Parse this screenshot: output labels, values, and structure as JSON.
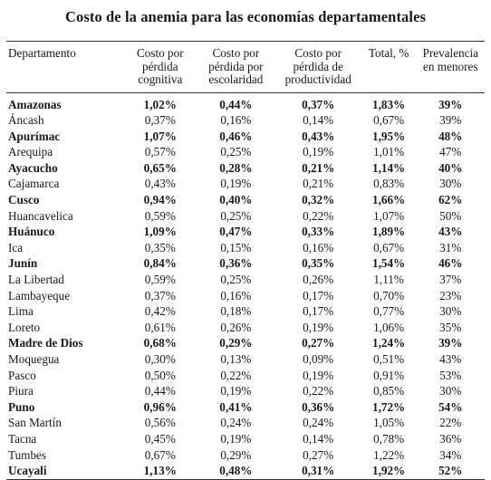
{
  "title": "Costo de la anemia para las economías departamentales",
  "headers": {
    "departamento": "Departamento",
    "costo_cognitiva": "Costo por pérdida cognitiva",
    "costo_escolaridad": "Costo por pérdida por escolaridad",
    "costo_productividad": "Costo por pérdida de productividad",
    "total": "Total, %",
    "prevalencia": "Prevalencia en menores"
  },
  "rows": [
    {
      "dept": "Amazonas",
      "cog": "1,02%",
      "esc": "0,44%",
      "prod": "0,37%",
      "total": "1,83%",
      "prev": "39%",
      "bold": true
    },
    {
      "dept": "Áncash",
      "cog": "0,37%",
      "esc": "0,16%",
      "prod": "0,14%",
      "total": "0,67%",
      "prev": "39%",
      "bold": false
    },
    {
      "dept": "Apurímac",
      "cog": "1,07%",
      "esc": "0,46%",
      "prod": "0,43%",
      "total": "1,95%",
      "prev": "48%",
      "bold": true
    },
    {
      "dept": "Arequipa",
      "cog": "0,57%",
      "esc": "0,25%",
      "prod": "0,19%",
      "total": "1,01%",
      "prev": "47%",
      "bold": false
    },
    {
      "dept": "Ayacucho",
      "cog": "0,65%",
      "esc": "0,28%",
      "prod": "0,21%",
      "total": "1,14%",
      "prev": "40%",
      "bold": true
    },
    {
      "dept": "Cajamarca",
      "cog": "0,43%",
      "esc": "0,19%",
      "prod": "0,21%",
      "total": "0,83%",
      "prev": "30%",
      "bold": false
    },
    {
      "dept": "Cusco",
      "cog": "0,94%",
      "esc": "0,40%",
      "prod": "0,32%",
      "total": "1,66%",
      "prev": "62%",
      "bold": true
    },
    {
      "dept": "Huancavelica",
      "cog": "0,59%",
      "esc": "0,25%",
      "prod": "0,22%",
      "total": "1,07%",
      "prev": "50%",
      "bold": false
    },
    {
      "dept": "Huánuco",
      "cog": "1,09%",
      "esc": "0,47%",
      "prod": "0,33%",
      "total": "1,89%",
      "prev": "43%",
      "bold": true
    },
    {
      "dept": "Ica",
      "cog": "0,35%",
      "esc": "0,15%",
      "prod": "0,16%",
      "total": "0,67%",
      "prev": "31%",
      "bold": false
    },
    {
      "dept": "Junín",
      "cog": "0,84%",
      "esc": "0,36%",
      "prod": "0,35%",
      "total": "1,54%",
      "prev": "46%",
      "bold": true
    },
    {
      "dept": "La Libertad",
      "cog": "0,59%",
      "esc": "0,25%",
      "prod": "0,26%",
      "total": "1,11%",
      "prev": "37%",
      "bold": false
    },
    {
      "dept": "Lambayeque",
      "cog": "0,37%",
      "esc": "0,16%",
      "prod": "0,17%",
      "total": "0,70%",
      "prev": "23%",
      "bold": false
    },
    {
      "dept": "Lima",
      "cog": "0,42%",
      "esc": "0,18%",
      "prod": "0,17%",
      "total": "0,77%",
      "prev": "30%",
      "bold": false
    },
    {
      "dept": "Loreto",
      "cog": "0,61%",
      "esc": "0,26%",
      "prod": "0,19%",
      "total": "1,06%",
      "prev": "35%",
      "bold": false
    },
    {
      "dept": "Madre de Dios",
      "cog": "0,68%",
      "esc": "0,29%",
      "prod": "0,27%",
      "total": "1,24%",
      "prev": "39%",
      "bold": true
    },
    {
      "dept": "Moquegua",
      "cog": "0,30%",
      "esc": "0,13%",
      "prod": "0,09%",
      "total": "0,51%",
      "prev": "43%",
      "bold": false
    },
    {
      "dept": "Pasco",
      "cog": "0,50%",
      "esc": "0,22%",
      "prod": "0,19%",
      "total": "0,91%",
      "prev": "53%",
      "bold": false
    },
    {
      "dept": "Piura",
      "cog": "0,44%",
      "esc": "0,19%",
      "prod": "0,22%",
      "total": "0,85%",
      "prev": "30%",
      "bold": false
    },
    {
      "dept": "Puno",
      "cog": "0,96%",
      "esc": "0,41%",
      "prod": "0,36%",
      "total": "1,72%",
      "prev": "54%",
      "bold": true
    },
    {
      "dept": "San Martín",
      "cog": "0,56%",
      "esc": "0,24%",
      "prod": "0,24%",
      "total": "1,05%",
      "prev": "22%",
      "bold": false
    },
    {
      "dept": "Tacna",
      "cog": "0,45%",
      "esc": "0,19%",
      "prod": "0,14%",
      "total": "0,78%",
      "prev": "36%",
      "bold": false
    },
    {
      "dept": "Tumbes",
      "cog": "0,67%",
      "esc": "0,29%",
      "prod": "0,27%",
      "total": "1,22%",
      "prev": "34%",
      "bold": false
    },
    {
      "dept": "Ucayali",
      "cog": "1,13%",
      "esc": "0,48%",
      "prod": "0,31%",
      "total": "1,92%",
      "prev": "52%",
      "bold": true
    }
  ]
}
